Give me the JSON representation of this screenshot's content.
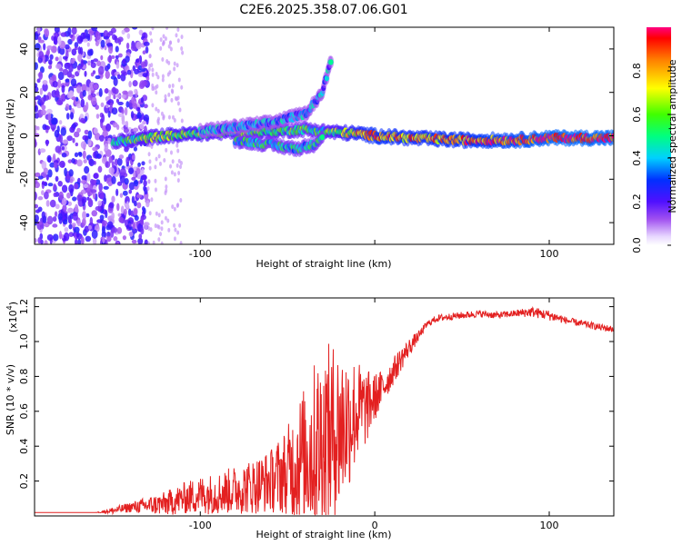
{
  "title": "C2E6.2025.358.07.06.G01",
  "chart_data": [
    {
      "type": "heatmap",
      "name": "spectrogram",
      "xlabel": "Height of straight line (km)",
      "ylabel": "Frequency (Hz)",
      "xlim": [
        -195,
        137
      ],
      "ylim": [
        -50,
        50
      ],
      "xticks": [
        -100,
        0,
        100
      ],
      "xtick_labels": [
        "-100",
        "",
        "100"
      ],
      "yticks": [
        -40,
        -20,
        0,
        20,
        40
      ],
      "ytick_labels": [
        "-40",
        "-20",
        "0",
        "20",
        "40"
      ],
      "colorbar": {
        "label": "Normalized spectral amplitude",
        "range": [
          0,
          1
        ],
        "ticks": [
          0.0,
          0.2,
          0.4,
          0.6,
          0.8
        ],
        "tick_labels": [
          "0.0",
          "0.2",
          "0.4",
          "0.6",
          "0.8"
        ],
        "colors": [
          "#f0e0ff",
          "#9a40f0",
          "#3010ff",
          "#00ffff",
          "#00ff30",
          "#ffff00",
          "#ff6000",
          "#ff0060"
        ]
      },
      "features": [
        {
          "label": "broadband noise",
          "x_range": [
            -195,
            -130
          ],
          "freq_range": [
            -50,
            50
          ],
          "amplitude": 0.2
        },
        {
          "label": "main signal track",
          "x": [
            -150,
            -120,
            -100,
            -80,
            -60,
            -40,
            -30,
            -10,
            0,
            20,
            50,
            80,
            100,
            137
          ],
          "freq": [
            -3,
            0,
            1,
            2,
            2,
            3,
            2,
            1,
            0,
            -1,
            -2,
            -2,
            -1,
            -1
          ],
          "amplitude": [
            0.5,
            0.6,
            0.6,
            0.55,
            0.55,
            0.5,
            0.5,
            0.75,
            0.85,
            0.8,
            0.85,
            0.9,
            0.95,
            0.95
          ]
        },
        {
          "label": "upper branch",
          "x": [
            -100,
            -80,
            -60,
            -40,
            -30,
            -25
          ],
          "freq": [
            2,
            4,
            6,
            10,
            20,
            35
          ],
          "amplitude": 0.35
        },
        {
          "label": "lower branch",
          "x": [
            -80,
            -60,
            -45,
            -35,
            -30
          ],
          "freq": [
            -2,
            -4,
            -6,
            -4,
            0
          ],
          "amplitude": 0.45
        }
      ]
    },
    {
      "type": "line",
      "name": "snr",
      "xlabel": "Height of straight line (km)",
      "ylabel": "SNR (10 * v/v)",
      "yscale_label": "(x10",
      "yscale_exp": "4",
      "yscale_close": ")",
      "xlim": [
        -195,
        137
      ],
      "ylim": [
        0,
        1.25
      ],
      "xticks": [
        -100,
        0,
        100
      ],
      "xtick_labels": [
        "-100",
        "0",
        "100"
      ],
      "yticks": [
        0.2,
        0.4,
        0.6,
        0.8,
        1.0,
        1.2
      ],
      "ytick_labels": [
        "0.2",
        "0.4",
        "0.6",
        "0.8",
        "1.0",
        "1.2"
      ],
      "color": "#e32020",
      "series": [
        {
          "name": "SNR envelope",
          "x": [
            -195,
            -160,
            -150,
            -140,
            -130,
            -120,
            -110,
            -100,
            -90,
            -80,
            -70,
            -60,
            -50,
            -45,
            -40,
            -35,
            -30,
            -25,
            -20,
            -15,
            -10,
            -5,
            0,
            5,
            10,
            15,
            20,
            25,
            30,
            35,
            40,
            50,
            60,
            70,
            80,
            90,
            100,
            110,
            120,
            130,
            137
          ],
          "y": [
            0.02,
            0.02,
            0.03,
            0.05,
            0.06,
            0.07,
            0.1,
            0.12,
            0.13,
            0.15,
            0.17,
            0.2,
            0.26,
            0.3,
            0.36,
            0.38,
            0.42,
            0.45,
            0.5,
            0.55,
            0.6,
            0.62,
            0.68,
            0.74,
            0.82,
            0.9,
            0.97,
            1.03,
            1.1,
            1.13,
            1.14,
            1.15,
            1.16,
            1.15,
            1.16,
            1.17,
            1.15,
            1.12,
            1.1,
            1.08,
            1.07
          ],
          "spread": [
            0.0,
            0.0,
            0.02,
            0.03,
            0.05,
            0.07,
            0.09,
            0.11,
            0.12,
            0.14,
            0.16,
            0.18,
            0.26,
            0.34,
            0.42,
            0.5,
            0.55,
            0.55,
            0.5,
            0.4,
            0.3,
            0.22,
            0.14,
            0.1,
            0.08,
            0.07,
            0.05,
            0.03,
            0.02,
            0.02,
            0.02,
            0.02,
            0.02,
            0.02,
            0.02,
            0.03,
            0.03,
            0.02,
            0.02,
            0.02,
            0.02
          ]
        }
      ]
    }
  ]
}
